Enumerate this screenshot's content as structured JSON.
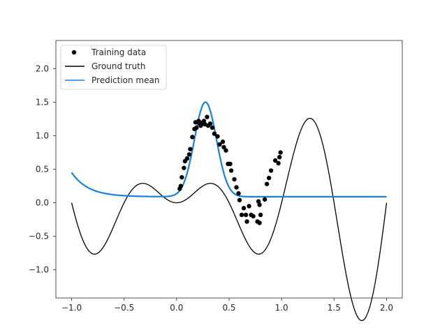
{
  "chart_data": {
    "type": "scatter",
    "title": "",
    "xlabel": "",
    "ylabel": "",
    "xlim": [
      -1.15,
      2.15
    ],
    "ylim": [
      -1.42,
      2.42
    ],
    "xticks": [
      -1.0,
      -0.5,
      0.0,
      0.5,
      1.0,
      1.5,
      2.0
    ],
    "xtick_labels": [
      "−1.0",
      "−0.5",
      "0.0",
      "0.5",
      "1.0",
      "1.5",
      "2.0"
    ],
    "yticks": [
      -1.0,
      -0.5,
      0.0,
      0.5,
      1.0,
      1.5,
      2.0
    ],
    "ytick_labels": [
      "−1.0",
      "−0.5",
      "0.0",
      "0.5",
      "1.0",
      "1.5",
      "2.0"
    ],
    "grid": false,
    "legend": {
      "position": "upper-left",
      "entries": [
        {
          "label": "Training data",
          "marker": "dot",
          "color": "#000000"
        },
        {
          "label": "Ground truth",
          "marker": "line",
          "color": "#000000"
        },
        {
          "label": "Prediction mean",
          "marker": "line",
          "color": "#1a80e0"
        }
      ]
    },
    "series": [
      {
        "name": "Training data",
        "kind": "scatter",
        "color": "#000000",
        "points": [
          [
            0.03,
            0.21
          ],
          [
            0.04,
            0.25
          ],
          [
            0.05,
            0.38
          ],
          [
            0.07,
            0.52
          ],
          [
            0.08,
            0.62
          ],
          [
            0.1,
            0.66
          ],
          [
            0.12,
            0.72
          ],
          [
            0.13,
            0.8
          ],
          [
            0.15,
            0.98
          ],
          [
            0.17,
            1.1
          ],
          [
            0.18,
            1.2
          ],
          [
            0.19,
            1.12
          ],
          [
            0.21,
            1.22
          ],
          [
            0.22,
            1.18
          ],
          [
            0.23,
            1.15
          ],
          [
            0.24,
            1.19
          ],
          [
            0.26,
            1.22
          ],
          [
            0.27,
            1.17
          ],
          [
            0.29,
            1.28
          ],
          [
            0.3,
            1.15
          ],
          [
            0.32,
            1.18
          ],
          [
            0.34,
            1.12
          ],
          [
            0.36,
            1.03
          ],
          [
            0.39,
            0.99
          ],
          [
            0.41,
            0.87
          ],
          [
            0.44,
            0.91
          ],
          [
            0.45,
            0.83
          ],
          [
            0.47,
            0.78
          ],
          [
            0.49,
            0.58
          ],
          [
            0.51,
            0.58
          ],
          [
            0.52,
            0.48
          ],
          [
            0.55,
            0.35
          ],
          [
            0.57,
            0.23
          ],
          [
            0.59,
            0.14
          ],
          [
            0.6,
            0.04
          ],
          [
            0.62,
            -0.18
          ],
          [
            0.64,
            -0.08
          ],
          [
            0.66,
            -0.18
          ],
          [
            0.67,
            -0.28
          ],
          [
            0.69,
            -0.05
          ],
          [
            0.71,
            -0.18
          ],
          [
            0.73,
            -0.2
          ],
          [
            0.77,
            -0.28
          ],
          [
            0.79,
            -0.3
          ],
          [
            0.8,
            -0.18
          ],
          [
            0.79,
            -0.03
          ],
          [
            0.78,
            0.02
          ],
          [
            0.84,
            0.05
          ],
          [
            0.86,
            0.28
          ],
          [
            0.88,
            0.37
          ],
          [
            0.9,
            0.48
          ],
          [
            0.94,
            0.63
          ],
          [
            0.97,
            0.59
          ],
          [
            0.98,
            0.68
          ],
          [
            0.99,
            0.75
          ]
        ]
      },
      {
        "name": "Ground truth",
        "kind": "line",
        "color": "#000000",
        "x_range": [
          -1.0,
          2.0
        ]
      },
      {
        "name": "Prediction mean",
        "kind": "line",
        "color": "#1a80e0",
        "x_range": [
          -1.0,
          2.0
        ]
      }
    ]
  }
}
